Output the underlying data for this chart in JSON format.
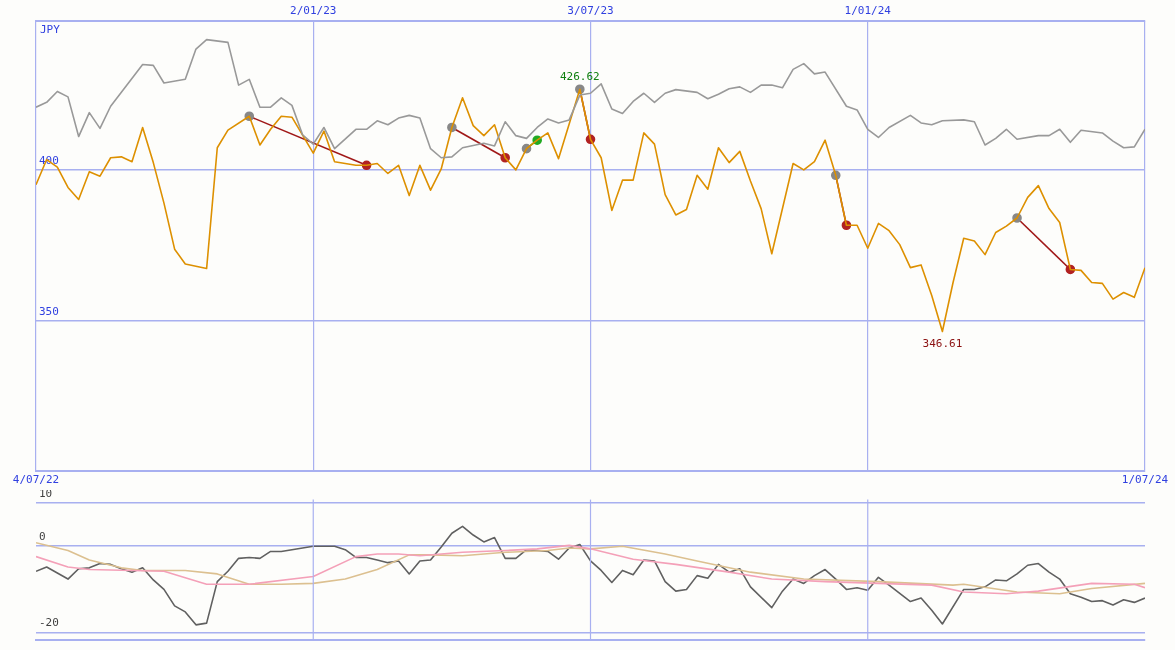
{
  "chart_data": [
    {
      "type": "line",
      "ylabel": "JPY",
      "grid": true,
      "legend": false,
      "marker": "none",
      "xlim": [
        "2022-07-04",
        "2024-07-01"
      ],
      "xticks": [
        {
          "value": "2022-07-04",
          "label": "4/07/22"
        },
        {
          "value": "2024-07-01",
          "label": "1/07/24"
        }
      ],
      "x2lim": [
        "2022-07-04",
        "2024-07-01"
      ],
      "x2ticks": [
        {
          "value": "2023-01-02",
          "label": "2/01/23"
        },
        {
          "value": "2023-07-03",
          "label": "3/07/23"
        },
        {
          "value": "2024-01-01",
          "label": "1/01/24"
        }
      ],
      "ylim": [
        300.6,
        449.1
      ],
      "yticks": [
        350,
        400
      ],
      "annotations": [
        {
          "text": "426.62",
          "x": "2023-06-26",
          "y": 426.62
        },
        {
          "text": "346.61",
          "x": "2024-02-19",
          "y": 346.61
        }
      ],
      "series": [
        {
          "color": "#999999",
          "x": [
            "2022-07-04",
            "2022-07-11",
            "2022-07-18",
            "2022-07-25",
            "2022-08-01",
            "2022-08-08",
            "2022-08-15",
            "2022-08-22",
            "2022-09-12",
            "2022-09-19",
            "2022-09-26",
            "2022-10-10",
            "2022-10-17",
            "2022-10-24",
            "2022-11-07",
            "2022-11-14",
            "2022-11-21",
            "2022-11-28",
            "2022-12-05",
            "2022-12-12",
            "2022-12-19",
            "2022-12-26",
            "2023-01-02",
            "2023-01-09",
            "2023-01-16",
            "2023-01-30",
            "2023-02-06",
            "2023-02-13",
            "2023-02-20",
            "2023-02-27",
            "2023-03-06",
            "2023-03-13",
            "2023-03-20",
            "2023-03-27",
            "2023-04-03",
            "2023-04-10",
            "2023-04-24",
            "2023-05-01",
            "2023-05-08",
            "2023-05-15",
            "2023-05-22",
            "2023-05-29",
            "2023-06-05",
            "2023-06-12",
            "2023-06-19",
            "2023-06-26",
            "2023-07-03",
            "2023-07-10",
            "2023-07-17",
            "2023-07-24",
            "2023-07-31",
            "2023-08-07",
            "2023-08-14",
            "2023-08-21",
            "2023-08-28",
            "2023-09-11",
            "2023-09-18",
            "2023-09-25",
            "2023-10-02",
            "2023-10-09",
            "2023-10-16",
            "2023-10-23",
            "2023-10-30",
            "2023-11-06",
            "2023-11-13",
            "2023-11-20",
            "2023-11-27",
            "2023-12-04",
            "2023-12-18",
            "2023-12-25",
            "2024-01-01",
            "2024-01-08",
            "2024-01-15",
            "2024-01-29",
            "2024-02-05",
            "2024-02-12",
            "2024-02-19",
            "2024-03-04",
            "2024-03-11",
            "2024-03-18",
            "2024-03-25",
            "2024-04-01",
            "2024-04-08",
            "2024-04-22",
            "2024-04-29",
            "2024-05-06",
            "2024-05-13",
            "2024-05-20",
            "2024-06-03",
            "2024-06-10",
            "2024-06-17",
            "2024-06-24",
            "2024-07-01"
          ],
          "values": [
            420.7,
            422.3,
            425.9,
            424.1,
            411.0,
            418.9,
            413.7,
            421.0,
            434.8,
            434.5,
            428.7,
            429.9,
            439.9,
            443.0,
            442.1,
            428.0,
            429.9,
            420.7,
            420.7,
            423.8,
            421.3,
            411.6,
            408.5,
            414.0,
            407.0,
            413.4,
            413.4,
            416.2,
            414.9,
            417.1,
            418.0,
            417.1,
            407.0,
            404.0,
            404.3,
            407.3,
            408.8,
            407.9,
            415.9,
            411.3,
            410.4,
            414.0,
            416.8,
            415.5,
            416.5,
            424.7,
            425.3,
            428.4,
            420.1,
            418.6,
            422.6,
            425.3,
            422.3,
            425.3,
            426.5,
            425.6,
            423.5,
            425.0,
            426.8,
            427.4,
            425.6,
            428.0,
            428.0,
            427.1,
            433.2,
            435.1,
            431.7,
            432.3,
            421.0,
            419.8,
            413.4,
            410.7,
            414.0,
            418.0,
            415.5,
            414.9,
            416.2,
            416.5,
            415.9,
            408.2,
            410.4,
            413.4,
            410.1,
            411.3,
            411.3,
            413.4,
            409.1,
            413.1,
            412.2,
            409.5,
            407.3,
            407.6,
            413.4
          ]
        },
        {
          "color": "#dd9000",
          "x": [
            "2022-07-04",
            "2022-07-11",
            "2022-07-18",
            "2022-07-25",
            "2022-08-01",
            "2022-08-08",
            "2022-08-15",
            "2022-08-22",
            "2022-08-29",
            "2022-09-05",
            "2022-09-12",
            "2022-09-19",
            "2022-09-26",
            "2022-10-03",
            "2022-10-10",
            "2022-10-24",
            "2022-10-31",
            "2022-11-07",
            "2022-11-21",
            "2022-11-28",
            "2022-12-05",
            "2022-12-12",
            "2022-12-19",
            "2023-01-02",
            "2023-01-09",
            "2023-01-16",
            "2023-01-30",
            "2023-02-06",
            "2023-02-13",
            "2023-02-20",
            "2023-02-27",
            "2023-03-06",
            "2023-03-13",
            "2023-03-20",
            "2023-03-27",
            "2023-04-03",
            "2023-04-10",
            "2023-04-17",
            "2023-04-24",
            "2023-05-01",
            "2023-05-08",
            "2023-05-15",
            "2023-05-22",
            "2023-05-29",
            "2023-06-05",
            "2023-06-12",
            "2023-06-26",
            "2023-07-03",
            "2023-07-10",
            "2023-07-17",
            "2023-07-24",
            "2023-07-31",
            "2023-08-07",
            "2023-08-14",
            "2023-08-21",
            "2023-08-28",
            "2023-09-04",
            "2023-09-11",
            "2023-09-18",
            "2023-09-25",
            "2023-10-02",
            "2023-10-09",
            "2023-10-16",
            "2023-10-23",
            "2023-10-30",
            "2023-11-13",
            "2023-11-20",
            "2023-11-27",
            "2023-12-04",
            "2023-12-11",
            "2023-12-18",
            "2023-12-25",
            "2024-01-01",
            "2024-01-08",
            "2024-01-15",
            "2024-01-22",
            "2024-01-29",
            "2024-02-05",
            "2024-02-12",
            "2024-02-19",
            "2024-02-26",
            "2024-03-04",
            "2024-03-11",
            "2024-03-18",
            "2024-03-25",
            "2024-04-01",
            "2024-04-08",
            "2024-04-15",
            "2024-04-22",
            "2024-04-29",
            "2024-05-06",
            "2024-05-13",
            "2024-05-20",
            "2024-05-27",
            "2024-06-03",
            "2024-06-10",
            "2024-06-17",
            "2024-06-24",
            "2024-07-01"
          ],
          "values": [
            395.1,
            403.4,
            400.9,
            394.2,
            390.2,
            399.4,
            397.9,
            404.0,
            404.3,
            402.7,
            414.0,
            402.4,
            389.0,
            373.8,
            368.9,
            367.4,
            407.3,
            413.1,
            417.7,
            408.2,
            413.4,
            417.7,
            417.4,
            405.5,
            412.8,
            402.7,
            401.5,
            401.5,
            402.1,
            398.8,
            401.5,
            391.5,
            401.5,
            393.3,
            400.3,
            414.0,
            423.8,
            414.6,
            411.3,
            414.9,
            404.0,
            400.0,
            407.0,
            409.8,
            412.2,
            403.7,
            426.62,
            410.1,
            404.0,
            386.6,
            396.6,
            396.6,
            412.2,
            408.5,
            391.8,
            385.1,
            386.9,
            398.2,
            393.6,
            407.3,
            402.4,
            406.1,
            396.3,
            387.2,
            372.3,
            402.1,
            400.0,
            402.7,
            409.8,
            398.2,
            381.7,
            381.7,
            374.1,
            382.3,
            379.9,
            375.3,
            367.7,
            368.6,
            358.5,
            346.61,
            362.8,
            377.4,
            376.5,
            372.0,
            379.3,
            381.4,
            384.1,
            390.9,
            394.8,
            387.2,
            382.6,
            367.1,
            366.8,
            362.8,
            362.5,
            357.3,
            359.5,
            357.9,
            367.7
          ]
        },
        {
          "color": "#a01818",
          "marker": "circle",
          "x": [
            "2022-11-21",
            "2023-02-06"
          ],
          "values": [
            417.7,
            401.5
          ],
          "colors": [
            "#888888",
            "#b22222"
          ]
        },
        {
          "color": "#a01818",
          "marker": "circle",
          "x": [
            "2023-04-03",
            "2023-05-08"
          ],
          "values": [
            414.0,
            404.0
          ],
          "colors": [
            "#888888",
            "#b22222"
          ]
        },
        {
          "color": "#a01818",
          "marker": "circle",
          "x": [
            "2023-06-26",
            "2023-07-03"
          ],
          "values": [
            426.62,
            410.1
          ],
          "colors": [
            "#888888",
            "#b22222"
          ]
        },
        {
          "color": "#a01818",
          "marker": "circle",
          "x": [
            "2023-12-11",
            "2023-12-18"
          ],
          "values": [
            398.2,
            381.7
          ],
          "colors": [
            "#888888",
            "#b22222"
          ]
        },
        {
          "color": "#a01818",
          "marker": "circle",
          "x": [
            "2024-04-08",
            "2024-05-13"
          ],
          "values": [
            384.1,
            367.1
          ],
          "colors": [
            "#888888",
            "#b22222"
          ]
        },
        {
          "color": "#22aa22",
          "marker": "circle",
          "x": [
            "2023-05-22",
            "2023-05-29"
          ],
          "values": [
            407.0,
            409.8
          ],
          "colors": [
            "#888888",
            "#22aa22"
          ]
        }
      ]
    },
    {
      "type": "line",
      "grid": "y",
      "legend": false,
      "marker": "none",
      "tick_labels": "y",
      "xlim": [
        "2022-07-04",
        "2024-07-01"
      ],
      "ref_lines": [
        {
          "axis": "x",
          "value": "2023-01-02",
          "color": "#a8b0f0"
        },
        {
          "axis": "x",
          "value": "2023-07-03",
          "color": "#a8b0f0"
        },
        {
          "axis": "x",
          "value": "2024-01-01",
          "color": "#a8b0f0"
        }
      ],
      "ylim": [
        -21.8,
        10.8
      ],
      "yticks": [
        -20,
        0,
        10
      ],
      "series": [
        {
          "color": "#f4a0b8",
          "x": [
            "2022-07-04",
            "2022-07-25",
            "2022-08-08",
            "2022-09-05",
            "2022-09-26",
            "2022-10-24",
            "2022-11-21",
            "2023-01-02",
            "2023-01-30",
            "2023-02-13",
            "2023-02-27",
            "2023-03-13",
            "2023-04-10",
            "2023-05-08",
            "2023-05-29",
            "2023-06-19",
            "2023-07-03",
            "2023-07-17",
            "2023-07-31",
            "2023-08-28",
            "2023-10-02",
            "2023-10-30",
            "2023-12-04",
            "2024-01-08",
            "2024-02-12",
            "2024-03-04",
            "2024-04-01",
            "2024-04-22",
            "2024-05-27",
            "2024-06-24",
            "2024-07-01"
          ],
          "values": [
            -2.4,
            -4.8,
            -5.4,
            -5.6,
            -5.8,
            -8.8,
            -8.8,
            -7.0,
            -2.4,
            -1.8,
            -1.8,
            -2.2,
            -1.4,
            -1.0,
            -0.6,
            0.2,
            -0.6,
            -1.8,
            -3.0,
            -4.2,
            -6.0,
            -7.6,
            -8.2,
            -8.6,
            -9.0,
            -10.6,
            -11.0,
            -10.4,
            -8.6,
            -8.8,
            -9.6
          ]
        },
        {
          "color": "#dcc090",
          "x": [
            "2022-07-04",
            "2022-07-25",
            "2022-08-08",
            "2022-08-29",
            "2022-09-12",
            "2022-10-10",
            "2022-10-31",
            "2022-11-21",
            "2022-12-12",
            "2023-01-02",
            "2023-01-23",
            "2023-02-13",
            "2023-03-06",
            "2023-03-20",
            "2023-04-10",
            "2023-05-08",
            "2023-06-05",
            "2023-06-19",
            "2023-07-03",
            "2023-07-24",
            "2023-08-21",
            "2023-09-11",
            "2023-10-16",
            "2023-11-20",
            "2024-01-08",
            "2024-02-26",
            "2024-03-04",
            "2024-04-08",
            "2024-05-06",
            "2024-05-27",
            "2024-07-01"
          ],
          "values": [
            0.8,
            -1.0,
            -3.2,
            -5.0,
            -5.6,
            -5.6,
            -6.4,
            -8.8,
            -8.8,
            -8.6,
            -7.6,
            -5.4,
            -2.0,
            -2.0,
            -2.2,
            -1.4,
            -1.0,
            -0.4,
            -0.6,
            0,
            -1.8,
            -3.4,
            -6.0,
            -7.6,
            -8.2,
            -9.0,
            -8.8,
            -10.6,
            -11.0,
            -9.8,
            -8.6
          ]
        },
        {
          "color": "#606060",
          "x": [
            "2022-07-04",
            "2022-07-11",
            "2022-07-18",
            "2022-07-25",
            "2022-08-01",
            "2022-08-08",
            "2022-08-15",
            "2022-08-22",
            "2022-08-29",
            "2022-09-05",
            "2022-09-12",
            "2022-09-19",
            "2022-09-26",
            "2022-10-03",
            "2022-10-10",
            "2022-10-17",
            "2022-10-24",
            "2022-10-31",
            "2022-11-07",
            "2022-11-14",
            "2022-11-21",
            "2022-11-28",
            "2022-12-05",
            "2022-12-12",
            "2022-12-26",
            "2023-01-02",
            "2023-01-16",
            "2023-01-23",
            "2023-01-30",
            "2023-02-06",
            "2023-02-13",
            "2023-02-20",
            "2023-02-27",
            "2023-03-06",
            "2023-03-13",
            "2023-03-20",
            "2023-03-27",
            "2023-04-03",
            "2023-04-10",
            "2023-04-17",
            "2023-04-24",
            "2023-05-01",
            "2023-05-08",
            "2023-05-15",
            "2023-05-22",
            "2023-05-29",
            "2023-06-05",
            "2023-06-12",
            "2023-06-19",
            "2023-06-26",
            "2023-07-03",
            "2023-07-10",
            "2023-07-17",
            "2023-07-24",
            "2023-07-31",
            "2023-08-07",
            "2023-08-14",
            "2023-08-21",
            "2023-08-28",
            "2023-09-04",
            "2023-09-11",
            "2023-09-18",
            "2023-09-25",
            "2023-10-02",
            "2023-10-09",
            "2023-10-16",
            "2023-10-30",
            "2023-11-06",
            "2023-11-13",
            "2023-11-20",
            "2023-11-27",
            "2023-12-04",
            "2023-12-11",
            "2023-12-18",
            "2023-12-25",
            "2024-01-01",
            "2024-01-08",
            "2024-01-15",
            "2024-01-29",
            "2024-02-05",
            "2024-02-12",
            "2024-02-19",
            "2024-03-04",
            "2024-03-11",
            "2024-03-18",
            "2024-03-25",
            "2024-04-01",
            "2024-04-08",
            "2024-04-15",
            "2024-04-22",
            "2024-04-29",
            "2024-05-06",
            "2024-05-13",
            "2024-05-20",
            "2024-05-27",
            "2024-06-03",
            "2024-06-10",
            "2024-06-17",
            "2024-06-24",
            "2024-07-01"
          ],
          "values": [
            -5.8,
            -4.8,
            -6.2,
            -7.6,
            -5.2,
            -5.0,
            -4.0,
            -4.2,
            -5.2,
            -6.0,
            -5.0,
            -7.8,
            -10.0,
            -13.8,
            -15.2,
            -18.2,
            -17.8,
            -8.2,
            -5.8,
            -2.8,
            -2.6,
            -2.8,
            -1.2,
            -1.2,
            -0.4,
            0,
            0,
            -0.8,
            -2.6,
            -2.6,
            -3.2,
            -3.8,
            -3.4,
            -6.4,
            -3.4,
            -3.2,
            -0.2,
            3.0,
            4.6,
            2.6,
            1.0,
            2.0,
            -2.8,
            -2.8,
            -0.8,
            -1.0,
            -1.2,
            -3.0,
            -0.4,
            0.4,
            -3.4,
            -5.6,
            -8.4,
            -5.6,
            -6.6,
            -3.2,
            -3.4,
            -8.2,
            -10.4,
            -10.0,
            -6.8,
            -7.4,
            -4.2,
            -6.0,
            -5.2,
            -9.4,
            -14.2,
            -10.4,
            -7.6,
            -8.6,
            -6.8,
            -5.4,
            -7.6,
            -10.0,
            -9.6,
            -10.2,
            -7.2,
            -9.0,
            -12.8,
            -12.0,
            -14.8,
            -18.0,
            -10.0,
            -10.0,
            -9.4,
            -7.8,
            -8.0,
            -6.4,
            -4.4,
            -4.0,
            -6.0,
            -7.6,
            -11.0,
            -11.8,
            -12.8,
            -12.6,
            -13.6,
            -12.4,
            -13.0,
            -12.0
          ]
        }
      ]
    }
  ]
}
